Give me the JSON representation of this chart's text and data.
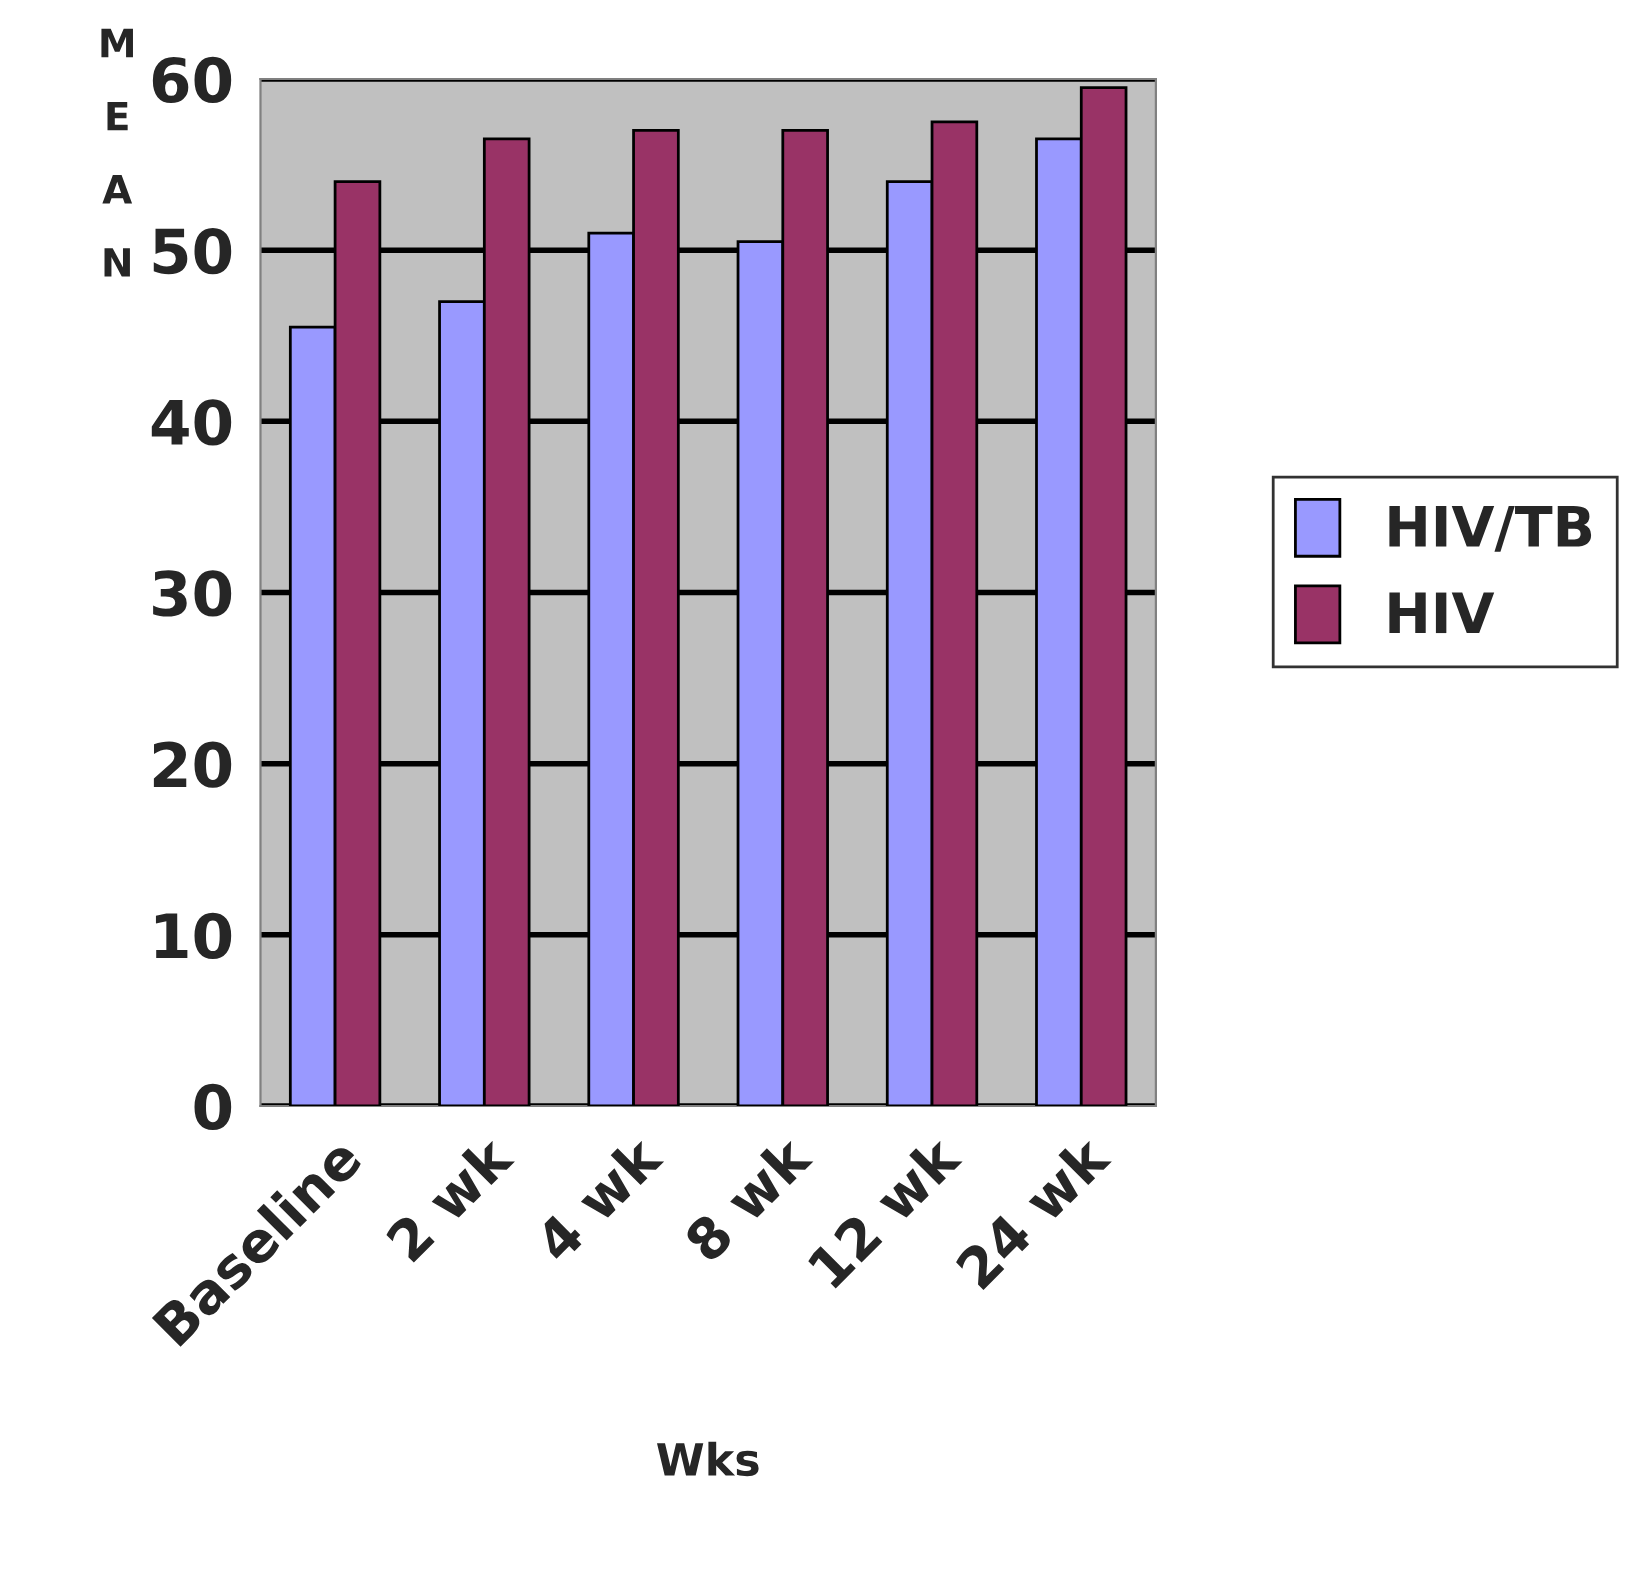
{
  "chart_data": {
    "type": "bar",
    "xlabel": "Wks",
    "ylabel": "MEAN",
    "categories": [
      "Baseline",
      "2 wk",
      "4 wk",
      "8 wk",
      "12 wk",
      "24 wk"
    ],
    "series": [
      {
        "name": "HIV/TB",
        "color": "#9999ff",
        "values": [
          45.5,
          47,
          51,
          50.5,
          54,
          56.5
        ]
      },
      {
        "name": "HIV",
        "color": "#993366",
        "values": [
          54,
          56.5,
          57,
          57,
          57.5,
          59.5
        ]
      }
    ],
    "ylim": [
      0,
      60
    ],
    "yticks": [
      0,
      10,
      20,
      30,
      40,
      50,
      60
    ],
    "grid": "y",
    "legend": "right"
  }
}
